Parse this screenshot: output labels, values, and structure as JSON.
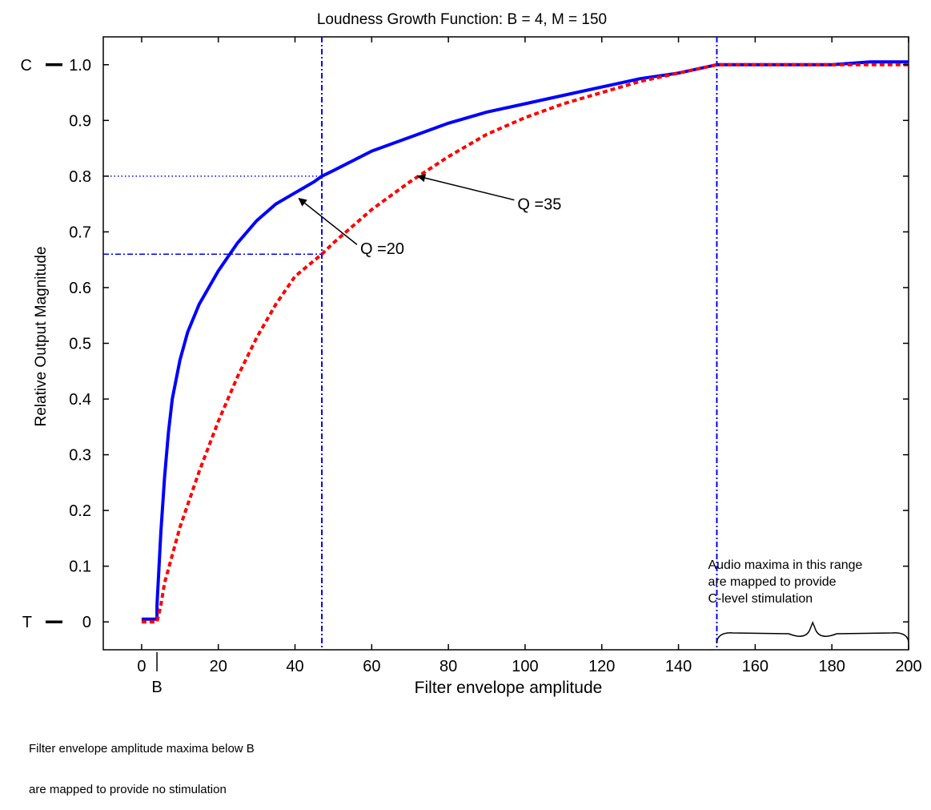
{
  "chart_data": {
    "type": "line",
    "title": "Loudness Growth Function: B = 4, M = 150",
    "xlabel": "Filter envelope amplitude",
    "ylabel": "Relative Output Magnitude",
    "xlim": [
      -10,
      200
    ],
    "ylim": [
      -0.05,
      1.05
    ],
    "x_ticks": [
      0,
      20,
      40,
      60,
      80,
      100,
      120,
      140,
      160,
      180,
      200
    ],
    "y_ticks": [
      0,
      0.1,
      0.2,
      0.3,
      0.4,
      0.5,
      0.6,
      0.7,
      0.8,
      0.9,
      1.0
    ],
    "y_tick_labels": [
      "0",
      "0.1",
      "0.2",
      "0.3",
      "0.4",
      "0.5",
      "0.6",
      "0.7",
      "0.8",
      "0.9",
      "1.0"
    ],
    "series": [
      {
        "name": "Q =20",
        "color": "#0000ff",
        "style": "solid",
        "x": [
          0,
          4,
          4,
          5,
          6,
          7,
          8,
          10,
          12,
          15,
          20,
          25,
          30,
          35,
          40,
          45,
          47,
          50,
          60,
          70,
          80,
          90,
          100,
          110,
          120,
          130,
          140,
          150,
          160,
          170,
          180,
          190,
          200
        ],
        "y": [
          0.005,
          0.005,
          0.03,
          0.16,
          0.26,
          0.34,
          0.4,
          0.47,
          0.52,
          0.57,
          0.63,
          0.68,
          0.72,
          0.75,
          0.77,
          0.79,
          0.8,
          0.81,
          0.845,
          0.87,
          0.895,
          0.915,
          0.93,
          0.945,
          0.96,
          0.975,
          0.985,
          1.0,
          1.0,
          1.0,
          1.0,
          1.005,
          1.005
        ]
      },
      {
        "name": "Q =35",
        "color": "#ff0000",
        "style": "dashed",
        "x": [
          0,
          4,
          5,
          6,
          8,
          10,
          12,
          15,
          20,
          25,
          30,
          35,
          40,
          47,
          50,
          60,
          70,
          80,
          90,
          100,
          110,
          120,
          130,
          140,
          150,
          160,
          170,
          180,
          190,
          200
        ],
        "y": [
          0.0,
          0.0,
          0.03,
          0.07,
          0.12,
          0.17,
          0.21,
          0.27,
          0.36,
          0.44,
          0.51,
          0.57,
          0.62,
          0.66,
          0.68,
          0.74,
          0.79,
          0.835,
          0.875,
          0.905,
          0.93,
          0.95,
          0.97,
          0.985,
          1.0,
          1.0,
          1.0,
          1.0,
          1.0,
          1.0
        ]
      }
    ],
    "reference_lines": [
      {
        "orientation": "vertical",
        "x": 47,
        "color": "#0000ff",
        "style": "dashdot"
      },
      {
        "orientation": "vertical",
        "x": 150,
        "color": "#0000ff",
        "style": "dashdot"
      },
      {
        "orientation": "horizontal",
        "y": 0.8,
        "x_from": -10,
        "x_to": 47,
        "color": "#0000ff",
        "style": "dotted"
      },
      {
        "orientation": "horizontal",
        "y": 0.66,
        "x_from": -10,
        "x_to": 47,
        "color": "#0000ff",
        "style": "dashdot"
      }
    ],
    "annotations": [
      {
        "text": "Q =20",
        "text_at": [
          57,
          0.66
        ],
        "arrow_to": [
          41,
          0.76
        ]
      },
      {
        "text": "Q =35",
        "text_at": [
          98,
          0.74
        ],
        "arrow_to": [
          72,
          0.8
        ]
      }
    ],
    "level_labels": [
      {
        "text": "C",
        "y": 1.0
      },
      {
        "text": "T",
        "y": 0
      }
    ],
    "b_marker": {
      "text": "B",
      "x": 4
    },
    "range_note": {
      "lines": [
        "Audio maxima in this range",
        "are mapped to provide",
        "C-level stimulation"
      ],
      "x_from": 150,
      "x_to": 200
    },
    "grid": false,
    "legend": "none"
  },
  "footnote": {
    "line1": "Filter envelope amplitude maxima below B",
    "line2": "are mapped to provide no stimulation"
  }
}
